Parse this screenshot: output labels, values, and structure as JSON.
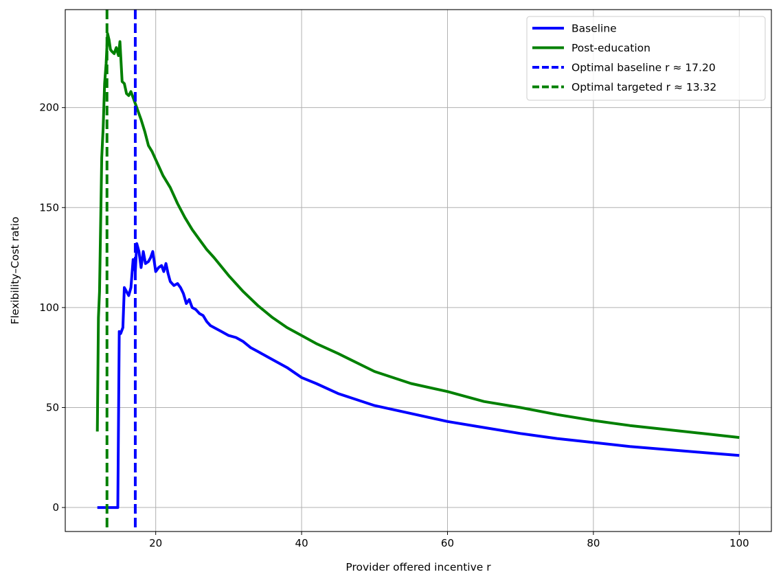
{
  "chart_data": {
    "type": "line",
    "title": "",
    "xlabel": "Provider offered incentive r",
    "ylabel": "Flexibility–Cost ratio",
    "xlim": [
      7.6,
      104.4
    ],
    "ylim": [
      -12,
      249
    ],
    "xticks": [
      20,
      40,
      60,
      80,
      100
    ],
    "yticks": [
      0,
      50,
      100,
      150,
      200
    ],
    "grid": true,
    "legend_position": "top-right",
    "series": [
      {
        "name": "Baseline",
        "color": "#0000ff",
        "style": "solid",
        "x": [
          12,
          12.5,
          13,
          13.5,
          14,
          14.5,
          14.8,
          15.0,
          15.2,
          15.5,
          15.7,
          16.0,
          16.3,
          16.6,
          16.9,
          17.2,
          17.4,
          17.7,
          18.0,
          18.3,
          18.6,
          19.0,
          19.3,
          19.6,
          20.0,
          20.4,
          20.8,
          21.1,
          21.4,
          21.7,
          22.0,
          22.5,
          23.0,
          23.4,
          23.8,
          24.2,
          24.6,
          25.0,
          25.5,
          26,
          26.5,
          27,
          27.5,
          28,
          29,
          30,
          31,
          32,
          33,
          34,
          35,
          36,
          38,
          40,
          42,
          45,
          50,
          55,
          60,
          65,
          70,
          75,
          80,
          85,
          90,
          95,
          100
        ],
        "values": [
          0,
          0,
          0,
          0,
          0,
          0,
          0,
          88,
          87,
          90,
          110,
          108,
          106,
          110,
          124,
          118,
          132,
          128,
          120,
          128,
          122,
          123,
          125,
          128,
          118,
          120,
          121,
          118,
          122,
          117,
          113,
          111,
          112,
          110,
          107,
          102,
          104,
          100,
          99,
          97,
          96,
          93,
          91,
          90,
          88,
          86,
          85,
          83,
          80,
          78,
          76,
          74,
          70,
          65,
          62,
          57,
          51,
          47,
          43,
          40,
          37,
          34.5,
          32.5,
          30.5,
          29,
          27.5,
          26
        ]
      },
      {
        "name": "Post-education",
        "color": "#008000",
        "style": "solid",
        "x": [
          12,
          12.15,
          12.3,
          12.6,
          12.8,
          13.0,
          13.2,
          13.4,
          13.6,
          13.8,
          14.0,
          14.3,
          14.6,
          14.9,
          15.1,
          15.4,
          15.7,
          16.0,
          16.3,
          16.6,
          16.9,
          17.2,
          17.6,
          18.0,
          18.5,
          19.0,
          19.5,
          20.0,
          20.5,
          21.0,
          21.5,
          22,
          23,
          24,
          25,
          26,
          27,
          28,
          30,
          32,
          34,
          36,
          38,
          40,
          42,
          45,
          50,
          55,
          60,
          65,
          70,
          75,
          80,
          85,
          90,
          95,
          100
        ],
        "values": [
          38,
          95,
          108,
          175,
          190,
          212,
          222,
          237,
          234,
          229,
          228,
          227,
          230,
          226,
          233,
          213,
          212,
          207,
          206,
          208,
          205,
          202,
          198,
          194,
          188,
          181,
          178,
          174,
          170,
          166,
          163,
          160,
          152,
          145,
          139,
          134,
          129,
          125,
          116,
          108,
          101,
          95,
          90,
          86,
          82,
          77,
          68,
          62,
          58,
          53,
          50,
          46.5,
          43.5,
          41,
          39,
          37,
          35
        ]
      }
    ],
    "vlines": [
      {
        "name": "Optimal baseline r ≈ 17.20",
        "x": 17.2,
        "color": "#0000ff",
        "style": "dashed"
      },
      {
        "name": "Optimal targeted r ≈ 13.32",
        "x": 13.32,
        "color": "#008000",
        "style": "dashed"
      }
    ]
  }
}
